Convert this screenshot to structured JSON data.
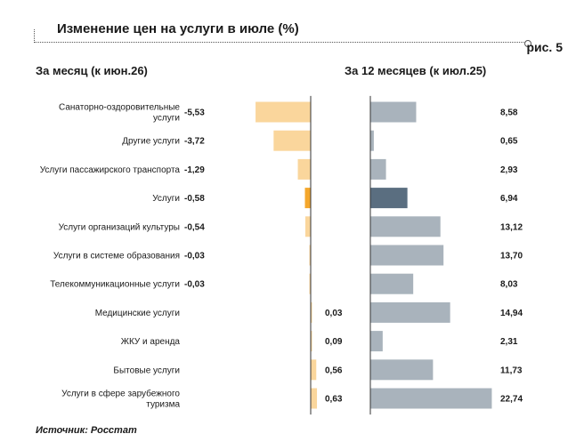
{
  "header": {
    "title": "Изменение цен на услуги в июле (%)",
    "figure_label": "рис. 5"
  },
  "left_panel": {
    "title": "За месяц (к июн.26)"
  },
  "right_panel": {
    "title": "За 12 месяцев (к июл.25)"
  },
  "source": "Источник: Росстат",
  "colors": {
    "monthly_bar": "#fad69c",
    "monthly_highlight": "#f4a72c",
    "yearly_bar": "#a9b3bc",
    "yearly_highlight": "#5a6e80",
    "axis": "#333333"
  },
  "chart_data": [
    {
      "type": "bar",
      "orientation": "horizontal",
      "title": "За месяц (к июн.26)",
      "categories": [
        "Санаторно-оздоровительные услуги",
        "Другие услуги",
        "Услуги пассажирского транспорта",
        "Услуги",
        "Услуги организаций культуры",
        "Услуги в системе образования",
        "Телекоммуникационные услуги",
        "Медицинские услуги",
        "ЖКУ и аренда",
        "Бытовые услуги",
        "Услуги в сфере зарубежного туризма"
      ],
      "category_lines": [
        [
          "Санаторно-оздоровительные",
          "услуги"
        ],
        [
          "Другие услуги"
        ],
        [
          "Услуги пассажирского транспорта"
        ],
        [
          "Услуги"
        ],
        [
          "Услуги организаций культуры"
        ],
        [
          "Услуги в системе образования"
        ],
        [
          "Телекоммуникационные услуги"
        ],
        [
          "Медицинские услуги"
        ],
        [
          "ЖКУ и аренда"
        ],
        [
          "Бытовые услуги"
        ],
        [
          "Услуги в сфере зарубежного",
          "туризма"
        ]
      ],
      "values": [
        -5.53,
        -3.72,
        -1.29,
        -0.58,
        -0.54,
        -0.03,
        -0.03,
        0.03,
        0.09,
        0.56,
        0.63
      ],
      "labels": [
        "-5,53",
        "-3,72",
        "-1,29",
        "-0,58",
        "-0,54",
        "-0,03",
        "-0,03",
        "0,03",
        "0,09",
        "0,56",
        "0,63"
      ],
      "highlight_index": 3
    },
    {
      "type": "bar",
      "orientation": "horizontal",
      "title": "За 12 месяцев (к июл.25)",
      "categories": [
        "Санаторно-оздоровительные услуги",
        "Другие услуги",
        "Услуги пассажирского транспорта",
        "Услуги",
        "Услуги организаций культуры",
        "Услуги в системе образования",
        "Телекоммуникационные услуги",
        "Медицинские услуги",
        "ЖКУ и аренда",
        "Бытовые услуги",
        "Услуги в сфере зарубежного туризма"
      ],
      "values": [
        8.58,
        0.65,
        2.93,
        6.94,
        13.12,
        13.7,
        8.03,
        14.94,
        2.31,
        11.73,
        22.74
      ],
      "labels": [
        "8,58",
        "0,65",
        "2,93",
        "6,94",
        "13,12",
        "13,70",
        "8,03",
        "14,94",
        "2,31",
        "11,73",
        "22,74"
      ],
      "highlight_index": 3
    }
  ]
}
